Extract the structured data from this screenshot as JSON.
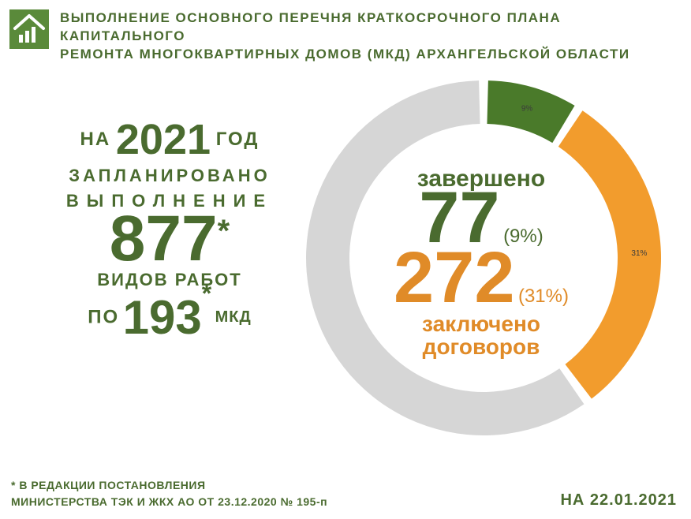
{
  "header": {
    "title_line1": "ВЫПОЛНЕНИЕ ОСНОВНОГО ПЕРЕЧНЯ КРАТКОСРОЧНОГО ПЛАНА КАПИТАЛЬНОГО",
    "title_line2": "РЕМОНТА МНОГОКВАРТИРНЫХ ДОМОВ (МКД) АРХАНГЕЛЬСКОЙ ОБЛАСТИ",
    "title_color": "#4a6b2f",
    "logo_background": "#5a8a3a",
    "title_fontsize": 17
  },
  "left": {
    "na": "НА",
    "year": "2021",
    "god": "ГОД",
    "planned": "ЗАПЛАНИРОВАНО",
    "execution": "ВЫПОЛНЕНИЕ",
    "works_count": "877",
    "works_ast": "*",
    "works_label": "ВИДОВ РАБОТ",
    "po": "ПО",
    "mkd_count": "193",
    "mkd_ast": "*",
    "mkd_label": "МКД"
  },
  "chart": {
    "type": "donut",
    "segments": [
      {
        "name": "completed",
        "percent": 9,
        "color": "#4a7a2a",
        "label": "9%"
      },
      {
        "name": "contracted",
        "percent": 31,
        "color": "#f29c2d",
        "label": "31%"
      },
      {
        "name": "remaining",
        "percent": 60,
        "color": "#d6d6d6",
        "label": ""
      }
    ],
    "start_angle_deg": -90,
    "gap_deg": 3,
    "inner_radius": 170,
    "outer_radius": 225,
    "background": "#ffffff",
    "center": {
      "top_label": "завершено",
      "num1": "77",
      "pct1": "(9%)",
      "num2": "272",
      "pct2": "(31%)",
      "bottom_label_l1": "заключено",
      "bottom_label_l2": "договоров",
      "top_color": "#4a6b2f",
      "bottom_color": "#e08b28"
    }
  },
  "footnote": {
    "line1": "* В РЕДАКЦИИ ПОСТАНОВЛЕНИЯ",
    "line2": "МИНИСТЕРСТВА ТЭК И ЖКХ АО ОТ 23.12.2020 № 195-п"
  },
  "date": "НА 22.01.2021",
  "palette": {
    "green": "#4a6b2f",
    "orange": "#e08b28",
    "grey": "#d6d6d6",
    "logo_green": "#5a8a3a"
  }
}
